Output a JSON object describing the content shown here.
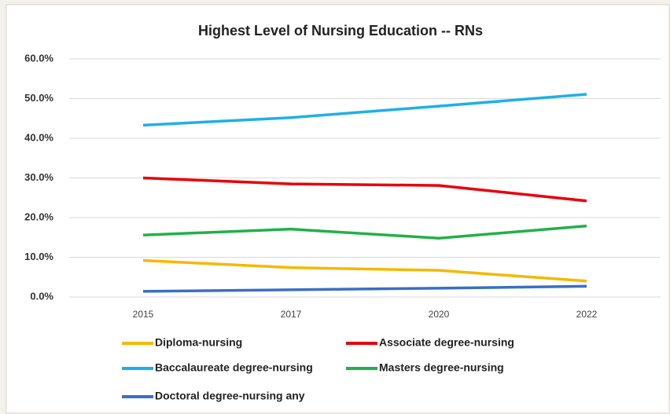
{
  "chart_data": {
    "type": "line",
    "title": "Highest Level of Nursing Education -- RNs",
    "categories": [
      "2015",
      "2017",
      "2020",
      "2022"
    ],
    "series": [
      {
        "name": "Diploma-nursing",
        "color": "#f5b800",
        "values": [
          9.2,
          7.4,
          6.7,
          4.0
        ]
      },
      {
        "name": "Associate degree-nursing",
        "color": "#e8000b",
        "values": [
          30.0,
          28.5,
          28.1,
          24.2
        ]
      },
      {
        "name": "Baccalaureate degree-nursing",
        "color": "#1eb0e8",
        "values": [
          43.3,
          45.2,
          48.1,
          51.1
        ]
      },
      {
        "name": "Masters degree-nursing",
        "color": "#22b04a",
        "values": [
          15.6,
          17.1,
          14.8,
          17.9
        ]
      },
      {
        "name": "Doctoral degree-nursing any",
        "color": "#3a6fc4",
        "values": [
          1.4,
          1.8,
          2.2,
          2.7
        ]
      }
    ],
    "ylim": [
      0,
      60
    ],
    "yticks": [
      {
        "value": 0,
        "label": "0.0%"
      },
      {
        "value": 10,
        "label": "10.0%"
      },
      {
        "value": 20,
        "label": "20.0%"
      },
      {
        "value": 30,
        "label": "30.0%"
      },
      {
        "value": 40,
        "label": "40.0%"
      },
      {
        "value": 50,
        "label": "50.0%"
      },
      {
        "value": 60,
        "label": "60.0%"
      }
    ],
    "grid": true,
    "legend": "bottom"
  }
}
